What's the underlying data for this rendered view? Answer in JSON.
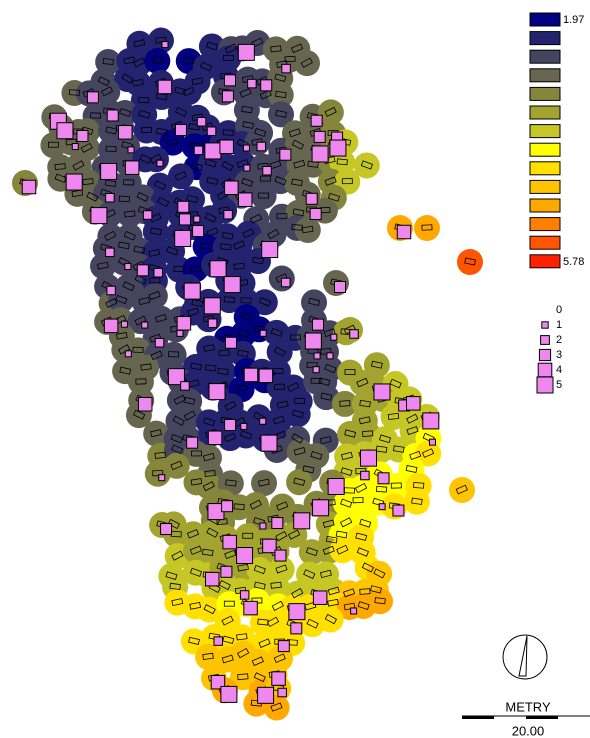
{
  "color_legend": {
    "min_label": "1.97",
    "max_label": "5.78",
    "colors": [
      "#000080",
      "#23236f",
      "#45455f",
      "#67674f",
      "#85853c",
      "#a3a330",
      "#c6c625",
      "#ffff00",
      "#ffe000",
      "#ffc400",
      "#ffa800",
      "#ff8000",
      "#ff5500",
      "#ff2200"
    ]
  },
  "size_legend": {
    "labels": [
      0,
      1,
      2,
      3,
      4,
      5
    ],
    "color": "#ee88ee"
  },
  "scale_bar": {
    "unit": "METRY",
    "length": "20.00"
  }
}
